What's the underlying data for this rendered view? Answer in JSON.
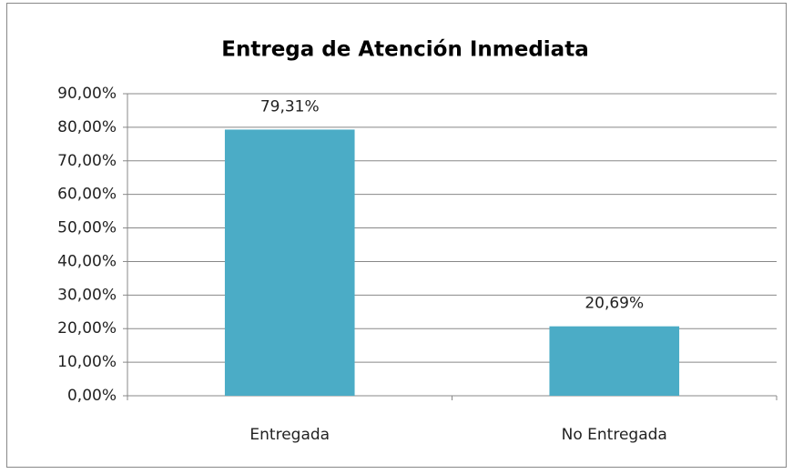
{
  "chart_data": {
    "type": "bar",
    "title": "Entrega de Atención Inmediata",
    "categories": [
      "Entregada",
      "No Entregada"
    ],
    "values": [
      79.31,
      20.69
    ],
    "value_labels": [
      "79,31%",
      "20,69%"
    ],
    "color": "#4bacc6",
    "ylim": [
      0,
      90
    ],
    "yticks": [
      {
        "value": 0,
        "label": "0,00%"
      },
      {
        "value": 10,
        "label": "10,00%"
      },
      {
        "value": 20,
        "label": "20,00%"
      },
      {
        "value": 30,
        "label": "30,00%"
      },
      {
        "value": 40,
        "label": "40,00%"
      },
      {
        "value": 50,
        "label": "50,00%"
      },
      {
        "value": 60,
        "label": "60,00%"
      },
      {
        "value": 70,
        "label": "70,00%"
      },
      {
        "value": 80,
        "label": "80,00%"
      },
      {
        "value": 90,
        "label": "90,00%"
      }
    ],
    "grid": true
  }
}
